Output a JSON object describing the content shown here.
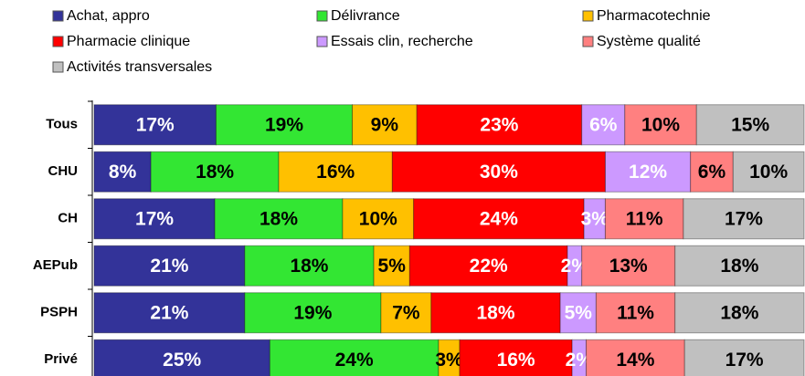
{
  "chart_data": {
    "type": "bar",
    "orientation": "horizontal",
    "stacked": "percent",
    "categories": [
      "Tous",
      "CHU",
      "CH",
      "AEPub",
      "PSPH",
      "Privé"
    ],
    "series": [
      {
        "name": "Achat, appro",
        "color": "#333399",
        "values": [
          17,
          8,
          17,
          21,
          21,
          25
        ],
        "value_labels": [
          "17%",
          "8%",
          "17%",
          "21%",
          "21%",
          "25%"
        ]
      },
      {
        "name": "Délivrance",
        "color": "#33e633",
        "values": [
          19,
          18,
          18,
          18,
          19,
          24
        ],
        "value_labels": [
          "19%",
          "18%",
          "18%",
          "18%",
          "19%",
          "24%"
        ]
      },
      {
        "name": "Pharmacotechnie",
        "color": "#ffc000",
        "values": [
          9,
          16,
          10,
          5,
          7,
          3
        ],
        "value_labels": [
          "9%",
          "16%",
          "10%",
          "5%",
          "7%",
          "3%"
        ]
      },
      {
        "name": "Pharmacie clinique",
        "color": "#ff0000",
        "values": [
          23,
          30,
          24,
          22,
          18,
          16
        ],
        "value_labels": [
          "23%",
          "30%",
          "24%",
          "22%",
          "18%",
          "16%"
        ]
      },
      {
        "name": "Essais clin, recherche",
        "color": "#cc99ff",
        "values": [
          6,
          12,
          3,
          2,
          5,
          2
        ],
        "value_labels": [
          "6%",
          "12%",
          "3%",
          "2%",
          "5%",
          "2%"
        ]
      },
      {
        "name": "Système qualité",
        "color": "#ff8080",
        "values": [
          10,
          6,
          11,
          13,
          11,
          14
        ],
        "value_labels": [
          "10%",
          "6%",
          "11%",
          "13%",
          "11%",
          "14%"
        ]
      },
      {
        "name": "Activités transversales",
        "color": "#c0c0c0",
        "values": [
          15,
          10,
          17,
          18,
          18,
          17
        ],
        "value_labels": [
          "15%",
          "10%",
          "17%",
          "18%",
          "18%",
          "17%"
        ]
      }
    ],
    "legend": "top"
  }
}
